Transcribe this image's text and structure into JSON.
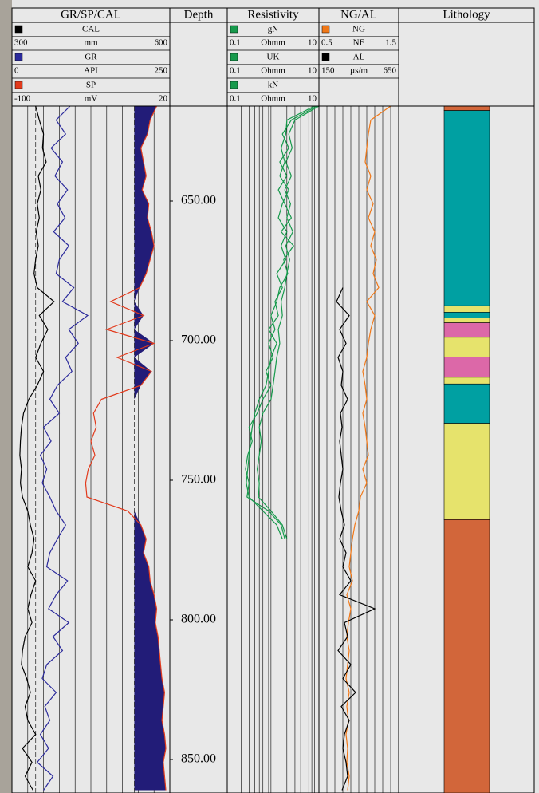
{
  "chart_data": {
    "type": "well-log",
    "depth_title": "Depth",
    "ylim": [
      616,
      862
    ],
    "yticks": [
      {
        "value": 650,
        "label": "650.00"
      },
      {
        "value": 700,
        "label": "700.00"
      },
      {
        "value": 750,
        "label": "750.00"
      },
      {
        "value": 800,
        "label": "800.00"
      },
      {
        "value": 850,
        "label": "850.00"
      }
    ],
    "minor_yticks": [
      620,
      630,
      640,
      650,
      660,
      670,
      680,
      690,
      700,
      710,
      720,
      730,
      740,
      750,
      760,
      770,
      780,
      790,
      800,
      810,
      820,
      830,
      840,
      850,
      860
    ],
    "depth": [
      616,
      621,
      626,
      631,
      636,
      641,
      646,
      651,
      656,
      661,
      666,
      671,
      676,
      681,
      686,
      691,
      696,
      701,
      706,
      711,
      716,
      721,
      726,
      731,
      736,
      741,
      746,
      751,
      756,
      761,
      766,
      771,
      776,
      781,
      786,
      791,
      796,
      801,
      806,
      811,
      816,
      821,
      826,
      831,
      836,
      841,
      846,
      851,
      856,
      861
    ],
    "tracks": [
      {
        "title": "GR/SP/CAL",
        "scale": "linear",
        "grid": 10,
        "bit_size": 345,
        "sp_fill": {
          "curve": 2,
          "baseline": -7,
          "color": "#221c78"
        },
        "curves": [
          {
            "name": "CAL",
            "unit": "mm",
            "color": "#000000",
            "xlim": [
              300,
              600
            ],
            "values": [
              345,
              352,
              360,
              358,
              365,
              350,
              355,
              348,
              352,
              346,
              350,
              345,
              342,
              348,
              380,
              352,
              368,
              355,
              345,
              360,
              348,
              332,
              322,
              318,
              316,
              315,
              318,
              316,
              320,
              330,
              335,
              342,
              338,
              330,
              345,
              336,
              330,
              338,
              325,
              320,
              318,
              328,
              335,
              325,
              330,
              345,
              320,
              338,
              325,
              340
            ]
          },
          {
            "name": "GR",
            "unit": "API",
            "color": "#2b2a9c",
            "xlim": [
              0,
              250
            ],
            "values": [
              92,
              70,
              85,
              62,
              80,
              68,
              88,
              72,
              84,
              66,
              90,
              75,
              70,
              98,
              80,
              120,
              90,
              105,
              85,
              95,
              72,
              60,
              75,
              50,
              62,
              45,
              55,
              48,
              60,
              70,
              85,
              72,
              60,
              55,
              88,
              70,
              58,
              90,
              65,
              80,
              55,
              48,
              70,
              52,
              60,
              45,
              58,
              40,
              65,
              50
            ]
          },
          {
            "name": "SP",
            "unit": "mV",
            "color": "#e23a1c",
            "xlim": [
              -100,
              20
            ],
            "values": [
              10,
              5,
              3,
              -2,
              0,
              2,
              -1,
              4,
              3,
              6,
              8,
              5,
              2,
              -3,
              -25,
              0,
              -28,
              8,
              -20,
              6,
              -2,
              -32,
              -38,
              -36,
              -40,
              -37,
              -42,
              -44,
              -43,
              -12,
              -2,
              2,
              0,
              4,
              5,
              8,
              10,
              9,
              11,
              12,
              13,
              14,
              16,
              15,
              14,
              16,
              17,
              15,
              16,
              17
            ]
          }
        ]
      },
      {
        "title": "Resistivity",
        "scale": "log",
        "grid": "log",
        "curves": [
          {
            "name": "gN",
            "unit": "Ohmm",
            "color": "#179a4c",
            "xlim": [
              0.1,
              10
            ],
            "values": [
              9,
              2.5,
              1.6,
              2.2,
              1.4,
              2,
              1.3,
              1.8,
              2.5,
              1.5,
              2.8,
              1.7,
              2.1,
              1.4,
              1.2,
              0.9,
              1.1,
              0.8,
              1,
              0.7,
              0.9,
              0.6,
              0.45,
              0.3,
              0.35,
              0.28,
              0.25,
              0.3,
              0.27,
              0.8,
              1.5,
              1.8,
              null,
              null,
              null,
              null,
              null,
              null,
              null,
              null,
              null,
              null,
              null,
              null,
              null,
              null,
              null,
              null,
              null,
              null
            ]
          },
          {
            "name": "UK",
            "unit": "Ohmm",
            "color": "#179a4c",
            "xlim": [
              0.1,
              10
            ],
            "values": [
              8,
              2,
              1.9,
              1.5,
              1.8,
              1.4,
              2.2,
              1.6,
              1.3,
              2,
              1.5,
              1.9,
              1.2,
              1.6,
              1.1,
              1.3,
              0.8,
              1.2,
              0.9,
              0.8,
              0.7,
              0.5,
              0.4,
              0.35,
              0.32,
              0.3,
              0.28,
              0.26,
              0.3,
              0.6,
              1.2,
              1.6,
              null,
              null,
              null,
              null,
              null,
              null,
              null,
              null,
              null,
              null,
              null,
              null,
              null,
              null,
              null,
              null,
              null,
              null
            ]
          },
          {
            "name": "kN",
            "unit": "Ohmm",
            "color": "#179a4c",
            "xlim": [
              0.1,
              10
            ],
            "values": [
              10,
              3,
              2.2,
              2.6,
              1.9,
              2.5,
              1.8,
              2.4,
              2,
              2.7,
              1.9,
              2.3,
              2,
              1.8,
              1.5,
              1.6,
              1.3,
              1.4,
              1.2,
              1.1,
              1,
              0.9,
              0.6,
              0.5,
              0.55,
              0.5,
              0.45,
              0.5,
              0.48,
              0.9,
              1.6,
              2,
              null,
              null,
              null,
              null,
              null,
              null,
              null,
              null,
              null,
              null,
              null,
              null,
              null,
              null,
              null,
              null,
              null,
              null
            ]
          }
        ]
      },
      {
        "title": "NG/AL",
        "scale": "linear",
        "grid": 10,
        "curves": [
          {
            "name": "NG",
            "unit": "NE",
            "color": "#f07818",
            "xlim": [
              0.5,
              1.5
            ],
            "values": [
              1.4,
              1.15,
              1.12,
              1.1,
              1.08,
              1.15,
              1.1,
              1.18,
              1.12,
              1.2,
              1.15,
              1.22,
              1.18,
              1.25,
              1.1,
              1.2,
              1.15,
              1.12,
              1.1,
              1.05,
              1.08,
              1.1,
              1.05,
              1.08,
              1.1,
              1.12,
              1.05,
              1.1,
              1.02,
              1,
              0.95,
              0.92,
              0.9,
              0.88,
              0.92,
              0.85,
              0.9,
              0.87,
              0.85,
              0.88,
              0.86,
              0.84,
              0.88,
              0.85,
              0.87,
              0.84,
              0.86,
              0.85,
              0.88,
              0.86
            ]
          },
          {
            "name": "AL",
            "unit": "µs/m",
            "color": "#000000",
            "xlim": [
              150,
              650
            ],
            "values": [
              null,
              null,
              null,
              null,
              null,
              null,
              null,
              null,
              null,
              null,
              null,
              null,
              null,
              300,
              260,
              340,
              280,
              320,
              270,
              300,
              290,
              330,
              285,
              295,
              280,
              290,
              300,
              285,
              275,
              290,
              310,
              280,
              320,
              300,
              350,
              280,
              500,
              310,
              330,
              270,
              350,
              300,
              380,
              290,
              340,
              310,
              300,
              320,
              330,
              295
            ]
          }
        ]
      }
    ],
    "lithology": {
      "title": "Lithology",
      "intervals": [
        {
          "top": 616,
          "bottom": 617.6,
          "color": "#d2663a"
        },
        {
          "top": 617.6,
          "bottom": 687.5,
          "color": "#00a0a2"
        },
        {
          "top": 687.5,
          "bottom": 689.8,
          "color": "#e6e36c"
        },
        {
          "top": 689.8,
          "bottom": 691.8,
          "color": "#00a0a2"
        },
        {
          "top": 691.8,
          "bottom": 693.6,
          "color": "#e6e36c"
        },
        {
          "top": 693.6,
          "bottom": 698.8,
          "color": "#dc68a8"
        },
        {
          "top": 698.8,
          "bottom": 705.8,
          "color": "#e6e36c"
        },
        {
          "top": 705.8,
          "bottom": 713.1,
          "color": "#dc68a8"
        },
        {
          "top": 713.1,
          "bottom": 715.5,
          "color": "#e6e36c"
        },
        {
          "top": 715.5,
          "bottom": 729.6,
          "color": "#00a0a2"
        },
        {
          "top": 729.6,
          "bottom": 764.1,
          "color": "#e6e36c"
        },
        {
          "top": 764.1,
          "bottom": 862,
          "color": "#d2663a"
        }
      ]
    }
  }
}
